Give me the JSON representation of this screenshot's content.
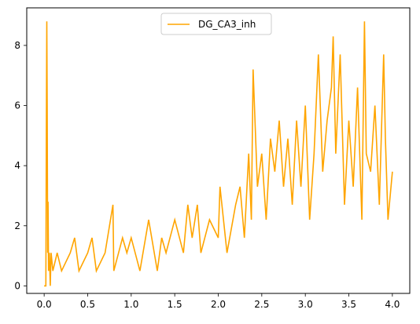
{
  "chart_data": {
    "type": "line",
    "title": "",
    "xlabel": "",
    "ylabel": "",
    "xlim": [
      -0.2,
      4.2
    ],
    "ylim": [
      -0.25,
      9.25
    ],
    "x_ticks": [
      0.0,
      0.5,
      1.0,
      1.5,
      2.0,
      2.5,
      3.0,
      3.5,
      4.0
    ],
    "x_tick_labels": [
      "0.0",
      "0.5",
      "1.0",
      "1.5",
      "2.0",
      "2.5",
      "3.0",
      "3.5",
      "4.0"
    ],
    "y_ticks": [
      0,
      2,
      4,
      6,
      8
    ],
    "y_tick_labels": [
      "0",
      "2",
      "4",
      "6",
      "8"
    ],
    "grid": false,
    "legend": {
      "placement": "top-center",
      "entries": [
        "DG_CA3_inh"
      ]
    },
    "series": [
      {
        "name": "DG_CA3_inh",
        "color": "#ffa500",
        "x": [
          0.0,
          0.02,
          0.025,
          0.03,
          0.035,
          0.04,
          0.045,
          0.05,
          0.06,
          0.07,
          0.08,
          0.1,
          0.15,
          0.2,
          0.3,
          0.35,
          0.4,
          0.5,
          0.55,
          0.6,
          0.7,
          0.79,
          0.8,
          0.9,
          0.95,
          1.0,
          1.1,
          1.2,
          1.3,
          1.35,
          1.4,
          1.5,
          1.6,
          1.65,
          1.7,
          1.76,
          1.8,
          1.9,
          2.0,
          2.02,
          2.1,
          2.2,
          2.25,
          2.3,
          2.35,
          2.38,
          2.4,
          2.45,
          2.5,
          2.55,
          2.6,
          2.65,
          2.7,
          2.75,
          2.8,
          2.85,
          2.9,
          2.95,
          3.0,
          3.05,
          3.1,
          3.15,
          3.2,
          3.25,
          3.3,
          3.32,
          3.35,
          3.4,
          3.45,
          3.5,
          3.55,
          3.6,
          3.65,
          3.68,
          3.7,
          3.75,
          3.8,
          3.85,
          3.9,
          3.92,
          3.95,
          4.0
        ],
        "y": [
          0.0,
          0.0,
          5.0,
          8.8,
          6.0,
          1.1,
          2.8,
          0.5,
          1.1,
          0.0,
          1.1,
          0.5,
          1.1,
          0.5,
          1.1,
          1.6,
          0.5,
          1.1,
          1.6,
          0.5,
          1.1,
          2.7,
          0.5,
          1.6,
          1.1,
          1.6,
          0.5,
          2.2,
          0.5,
          1.6,
          1.1,
          2.2,
          1.1,
          2.7,
          1.6,
          2.7,
          1.1,
          2.2,
          1.6,
          3.3,
          1.1,
          2.7,
          3.3,
          1.6,
          4.4,
          2.2,
          7.2,
          3.3,
          4.4,
          2.2,
          4.9,
          3.8,
          5.5,
          3.3,
          4.9,
          2.7,
          5.5,
          3.3,
          6.0,
          2.2,
          4.4,
          7.7,
          3.8,
          5.5,
          6.6,
          8.3,
          4.4,
          7.7,
          2.7,
          5.5,
          3.3,
          6.6,
          2.2,
          8.8,
          4.4,
          3.8,
          6.0,
          2.7,
          7.7,
          4.9,
          2.2,
          3.8
        ]
      }
    ]
  }
}
